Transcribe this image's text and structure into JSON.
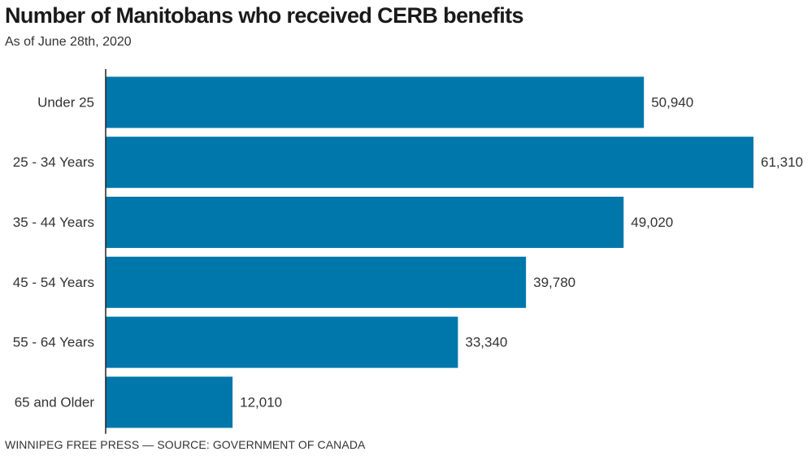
{
  "chart_data": {
    "type": "bar",
    "orientation": "horizontal",
    "title": "Number of Manitobans who received CERB benefits",
    "subtitle": "As of June 28th, 2020",
    "categories": [
      "Under 25",
      "25 - 34 Years",
      "35 - 44 Years",
      "45 - 54 Years",
      "55 - 64 Years",
      "65 and Older"
    ],
    "values": [
      50940,
      61310,
      49020,
      39780,
      33340,
      12010
    ],
    "value_labels": [
      "50,940",
      "61,310",
      "49,020",
      "39,780",
      "33,340",
      "12,010"
    ],
    "xlim": [
      0,
      61310
    ],
    "bar_color": "#0077aa",
    "axis_color": "#222222",
    "xlabel": "",
    "ylabel": "",
    "grid": false,
    "source": "WINNIPEG FREE PRESS — SOURCE: GOVERNMENT OF CANADA"
  }
}
